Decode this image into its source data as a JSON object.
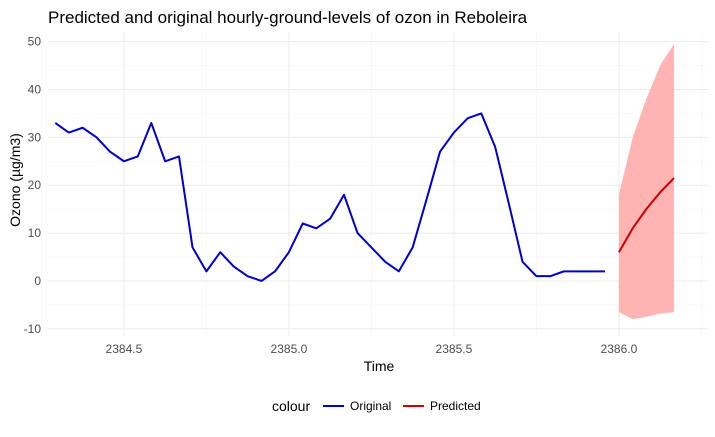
{
  "chart_data": {
    "type": "line",
    "title": "Predicted and original hourly-ground-levels of ozon in Reboleira",
    "xlabel": "Time",
    "ylabel": "Ozono (µg/m3)",
    "xlim": [
      2384.27,
      2386.27
    ],
    "ylim": [
      -11.5,
      52
    ],
    "x_ticks": [
      2384.5,
      2385.0,
      2385.5,
      2386.0
    ],
    "x_tick_labels": [
      "2384.5",
      "2385.0",
      "2385.5",
      "2386.0"
    ],
    "y_ticks": [
      -10,
      0,
      10,
      20,
      30,
      40,
      50
    ],
    "y_tick_labels": [
      "-10",
      "0",
      "10",
      "20",
      "30",
      "40",
      "50"
    ],
    "grid": true,
    "legend": {
      "position": "bottom",
      "title": "colour",
      "entries": [
        {
          "label": "Original",
          "color": "#0000cd"
        },
        {
          "label": "Predicted",
          "color": "#cc0000"
        }
      ]
    },
    "series": [
      {
        "name": "Original",
        "color": "#0000cd",
        "x": [
          2384.292,
          2384.333,
          2384.375,
          2384.417,
          2384.458,
          2384.5,
          2384.542,
          2384.583,
          2384.625,
          2384.667,
          2384.708,
          2384.75,
          2384.792,
          2384.833,
          2384.875,
          2384.917,
          2384.958,
          2385.0,
          2385.042,
          2385.083,
          2385.125,
          2385.167,
          2385.208,
          2385.25,
          2385.292,
          2385.333,
          2385.375,
          2385.417,
          2385.458,
          2385.5,
          2385.542,
          2385.583,
          2385.625,
          2385.667,
          2385.708,
          2385.75,
          2385.792,
          2385.833,
          2385.875,
          2385.917,
          2385.958
        ],
        "y": [
          33,
          31,
          32,
          30,
          27,
          25,
          26,
          33,
          25,
          26,
          7,
          2,
          6,
          3,
          1,
          0,
          2,
          6,
          12,
          11,
          13,
          18,
          10,
          7,
          4,
          2,
          7,
          17,
          27,
          31,
          34,
          35,
          28,
          16,
          4,
          1,
          1,
          2,
          2,
          2,
          2
        ]
      },
      {
        "name": "Predicted",
        "color": "#cc0000",
        "x": [
          2386.0,
          2386.042,
          2386.083,
          2386.125,
          2386.167
        ],
        "y": [
          6,
          11,
          15,
          18.5,
          21.5
        ],
        "lower": [
          -6.5,
          -8,
          -7.5,
          -6.8,
          -6.5
        ],
        "upper": [
          18,
          30,
          38,
          45,
          49.5
        ]
      }
    ]
  }
}
